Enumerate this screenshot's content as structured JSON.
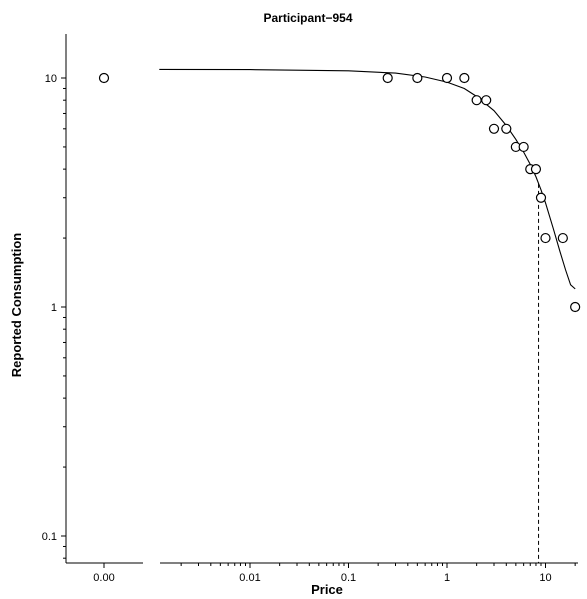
{
  "chart_data": {
    "type": "scatter",
    "title": "Participant−954",
    "xlabel": "Price",
    "ylabel": "Reported Consumption",
    "x_scale": "log",
    "y_scale": "log",
    "xlim": [
      0.0012,
      22
    ],
    "ylim": [
      0.08,
      17
    ],
    "zero_price_axis_label": "0.00",
    "x_ticks": [
      {
        "value": 0.01,
        "label": "0.01"
      },
      {
        "value": 0.1,
        "label": "0.1"
      },
      {
        "value": 1,
        "label": "1"
      },
      {
        "value": 10,
        "label": "10"
      }
    ],
    "y_ticks": [
      {
        "value": 0.1,
        "label": "0.1"
      },
      {
        "value": 1,
        "label": "1"
      },
      {
        "value": 10,
        "label": "10"
      }
    ],
    "zero_price_point": {
      "x": 0,
      "y": 10
    },
    "series": [
      {
        "points": [
          {
            "x": 0.25,
            "y": 10
          },
          {
            "x": 0.5,
            "y": 10
          },
          {
            "x": 1,
            "y": 10
          },
          {
            "x": 1.5,
            "y": 10
          },
          {
            "x": 2,
            "y": 8
          },
          {
            "x": 2.5,
            "y": 8
          },
          {
            "x": 3,
            "y": 6
          },
          {
            "x": 4,
            "y": 6
          },
          {
            "x": 5,
            "y": 5
          },
          {
            "x": 6,
            "y": 5
          },
          {
            "x": 7,
            "y": 4
          },
          {
            "x": 8,
            "y": 4
          },
          {
            "x": 9,
            "y": 3
          },
          {
            "x": 10,
            "y": 2
          },
          {
            "x": 15,
            "y": 2
          },
          {
            "x": 20,
            "y": 1
          }
        ]
      }
    ],
    "fit_curve": {
      "points": [
        {
          "x": 0.0012,
          "y": 10.9
        },
        {
          "x": 0.01,
          "y": 10.88
        },
        {
          "x": 0.1,
          "y": 10.75
        },
        {
          "x": 0.3,
          "y": 10.5
        },
        {
          "x": 0.6,
          "y": 10.1
        },
        {
          "x": 1,
          "y": 9.6
        },
        {
          "x": 1.5,
          "y": 9.0
        },
        {
          "x": 2,
          "y": 8.3
        },
        {
          "x": 3,
          "y": 7.2
        },
        {
          "x": 4,
          "y": 6.2
        },
        {
          "x": 5,
          "y": 5.4
        },
        {
          "x": 6,
          "y": 4.75
        },
        {
          "x": 7,
          "y": 4.2
        },
        {
          "x": 8,
          "y": 3.7
        },
        {
          "x": 9,
          "y": 3.25
        },
        {
          "x": 10,
          "y": 2.85
        },
        {
          "x": 12,
          "y": 2.2
        },
        {
          "x": 14,
          "y": 1.75
        },
        {
          "x": 16,
          "y": 1.45
        },
        {
          "x": 18,
          "y": 1.25
        },
        {
          "x": 20,
          "y": 1.2
        }
      ]
    },
    "pmax_line": {
      "x": 8.5,
      "y": 3.45
    }
  }
}
